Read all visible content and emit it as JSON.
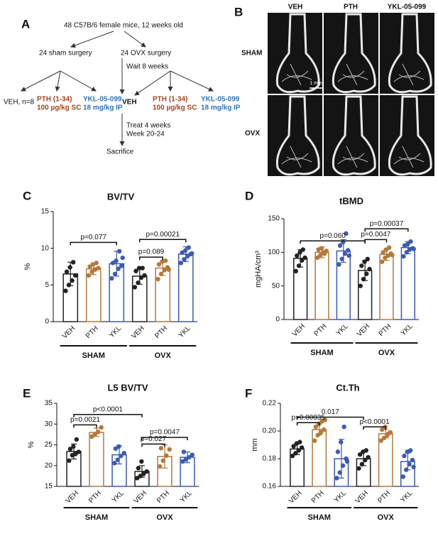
{
  "diagram": {
    "panel": "A",
    "start": "48 C57B/6 female mice, 12 weeks old",
    "sham": "24 sham surgery",
    "ovx": "24 OVX surgery",
    "wait": "Wait 8 weeks",
    "veh_n": "VEH, n=8",
    "pth": [
      "PTH (1-34)",
      "100 µg/kg SC"
    ],
    "ykl": [
      "YKL-05-099",
      "18 mg/kg IP"
    ],
    "veh": "VEH",
    "pth2": [
      "PTH (1-34)",
      "100 µg/kg SC"
    ],
    "ykl2": [
      "YKL-05-099",
      "18 mg/kg IP"
    ],
    "treat": [
      "Treat 4 weeks",
      "Week 20-24"
    ],
    "end": "Sacrifice"
  },
  "images": {
    "panel": "B",
    "columns": [
      "VEH",
      "PTH",
      "YKL-05-099"
    ],
    "rows": [
      "SHAM",
      "OVX"
    ],
    "scale": "1 mm"
  },
  "chart_data": [
    {
      "type": "bar",
      "panel": "C",
      "title": "BV/TV",
      "ylabel": "%",
      "ylim": [
        0,
        15
      ],
      "yticks": [
        0,
        5,
        10,
        15
      ],
      "categories": [
        "VEH",
        "PTH",
        "YKL",
        "VEH",
        "PTH",
        "YKL"
      ],
      "groups": [
        "SHAM",
        "OVX"
      ],
      "colors": [
        "#222222",
        "#b5783a",
        "#3d5bb0",
        "#222222",
        "#b5783a",
        "#3d5bb0"
      ],
      "values": [
        6.5,
        7.2,
        7.9,
        6.2,
        7.3,
        9.2
      ],
      "errors": [
        1.6,
        0.8,
        1.7,
        1.1,
        1.0,
        1.0
      ],
      "points": [
        [
          4.2,
          5.0,
          5.6,
          6.3,
          6.8,
          7.4,
          8.1
        ],
        [
          6.3,
          6.8,
          7.1,
          7.3,
          7.5,
          7.8,
          8.0
        ],
        [
          5.9,
          6.5,
          7.2,
          7.6,
          8.0,
          8.3,
          9.6,
          8.7
        ],
        [
          4.7,
          5.3,
          6.0,
          6.3,
          6.9,
          7.3,
          7.3
        ],
        [
          5.8,
          6.5,
          7.0,
          7.4,
          7.8,
          8.2,
          8.3,
          7.1
        ],
        [
          8.0,
          8.5,
          8.9,
          9.2,
          9.4,
          9.7,
          10.1,
          9.3
        ]
      ],
      "comparisons": [
        {
          "from": 0,
          "to": 2,
          "y": 10.8,
          "label": "p=0.077"
        },
        {
          "from": 3,
          "to": 4,
          "y": 8.8,
          "label": "p=0.089"
        },
        {
          "from": 3,
          "to": 5,
          "y": 11.2,
          "label": "p=0.00021"
        }
      ]
    },
    {
      "type": "bar",
      "panel": "D",
      "title": "tBMD",
      "ylabel": "mgHA/cm³",
      "ylim": [
        0,
        150
      ],
      "yticks": [
        0,
        50,
        100,
        150
      ],
      "categories": [
        "VEH",
        "PTH",
        "YKL",
        "VEH",
        "PTH",
        "YKL"
      ],
      "groups": [
        "SHAM",
        "OVX"
      ],
      "colors": [
        "#222222",
        "#b5783a",
        "#3d5bb0",
        "#222222",
        "#b5783a",
        "#3d5bb0"
      ],
      "values": [
        91,
        100,
        102,
        73,
        97,
        107
      ],
      "errors": [
        13,
        8,
        17,
        15,
        9,
        9
      ],
      "points": [
        [
          72,
          80,
          88,
          92,
          95,
          100,
          104
        ],
        [
          92,
          96,
          100,
          102,
          104,
          106,
          98
        ],
        [
          82,
          90,
          98,
          103,
          110,
          115,
          128,
          95
        ],
        [
          50,
          60,
          68,
          75,
          80,
          86,
          90
        ],
        [
          86,
          92,
          95,
          98,
          100,
          104,
          107,
          96
        ],
        [
          94,
          100,
          104,
          106,
          110,
          112,
          116,
          105
        ]
      ],
      "comparisons": [
        {
          "from": 0,
          "to": 3,
          "y": 117,
          "label": "p=0.060"
        },
        {
          "from": 3,
          "to": 4,
          "y": 119,
          "label": "p=0.0047"
        },
        {
          "from": 3,
          "to": 5,
          "y": 135,
          "label": "p=0.00037"
        }
      ]
    },
    {
      "type": "bar",
      "panel": "E",
      "title": "L5 BV/TV",
      "ylabel": "%",
      "ylim": [
        15,
        35
      ],
      "yticks": [
        15,
        20,
        25,
        30,
        35
      ],
      "categories": [
        "VEH",
        "PTH",
        "YKL",
        "VEH",
        "PTH",
        "YKL"
      ],
      "groups": [
        "SHAM",
        "OVX"
      ],
      "colors": [
        "#222222",
        "#b5783a",
        "#3d5bb0",
        "#222222",
        "#b5783a",
        "#3d5bb0"
      ],
      "values": [
        23.4,
        28.0,
        22.6,
        18.6,
        22.2,
        22.0
      ],
      "errors": [
        1.8,
        1.0,
        2.2,
        1.4,
        2.8,
        1.3
      ],
      "points": [
        [
          21.2,
          22.5,
          22.8,
          23.3,
          24.0,
          24.6,
          26.3
        ],
        [
          27.0,
          27.6,
          28.1,
          29.2
        ],
        [
          20.6,
          21.4,
          22.3,
          23.0,
          24.1,
          24.6
        ],
        [
          17.0,
          17.5,
          18.0,
          18.6,
          19.4,
          21.0
        ],
        [
          19.8,
          21.2,
          22.4,
          23.9,
          24.2
        ],
        [
          21.0,
          21.5,
          22.0,
          22.6,
          23.3
        ]
      ],
      "comparisons": [
        {
          "from": 0,
          "to": 1,
          "y": 29.8,
          "label": "p=0.0021"
        },
        {
          "from": 0,
          "to": 3,
          "y": 32.3,
          "label": "p<0.0001"
        },
        {
          "from": 3,
          "to": 5,
          "y": 26.8,
          "label": "p=0.0047"
        },
        {
          "from": 3,
          "to": 4,
          "y": 25.2,
          "label": "p=0.027"
        }
      ]
    },
    {
      "type": "bar",
      "panel": "F",
      "title": "Ct.Th",
      "ylabel": "mm",
      "ylim": [
        0.16,
        0.22
      ],
      "yticks": [
        0.16,
        0.18,
        {
          "value": 0.2,
          "label": "0.20"
        },
        0.22
      ],
      "categories": [
        "VEH",
        "PTH",
        "YKL",
        "VEH",
        "PTH",
        "YKL"
      ],
      "groups": [
        "SHAM",
        "OVX"
      ],
      "colors": [
        "#222222",
        "#b5783a",
        "#3d5bb0",
        "#222222",
        "#b5783a",
        "#3d5bb0"
      ],
      "values": [
        0.187,
        0.201,
        0.18,
        0.18,
        0.198,
        0.178
      ],
      "errors": [
        0.004,
        0.004,
        0.014,
        0.005,
        0.003,
        0.006
      ],
      "points": [
        [
          0.182,
          0.184,
          0.186,
          0.188,
          0.189,
          0.191,
          0.192
        ],
        [
          0.193,
          0.197,
          0.199,
          0.201,
          0.203,
          0.205,
          0.207,
          0.208
        ],
        [
          0.166,
          0.17,
          0.175,
          0.18,
          0.185,
          0.192,
          0.203,
          0.178
        ],
        [
          0.173,
          0.176,
          0.179,
          0.181,
          0.183,
          0.185,
          0.186
        ],
        [
          0.193,
          0.195,
          0.197,
          0.199,
          0.201,
          0.203,
          0.198
        ],
        [
          0.167,
          0.172,
          0.176,
          0.179,
          0.182,
          0.185,
          0.186,
          0.174
        ]
      ],
      "comparisons": [
        {
          "from": 0,
          "to": 1,
          "y": 0.206,
          "label": "p=0.00035"
        },
        {
          "from": 0,
          "to": 3,
          "y": 0.21,
          "label": "0.017"
        },
        {
          "from": 3,
          "to": 4,
          "y": 0.203,
          "label": "p<0.0001"
        }
      ]
    }
  ]
}
